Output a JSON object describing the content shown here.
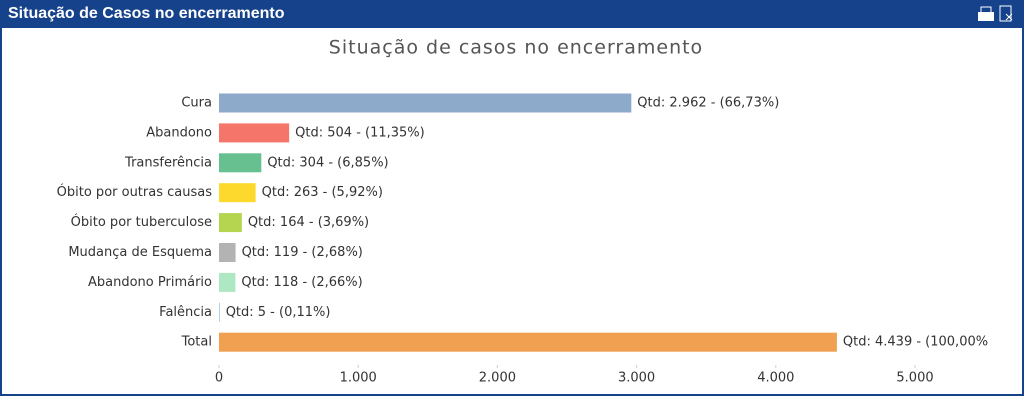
{
  "panel_title": "Situação de Casos no encerramento",
  "chart_data": {
    "type": "barh",
    "title": "Situação de casos no encerramento",
    "categories": [
      "Cura",
      "Abandono",
      "Transferência",
      "Óbito por outras causas",
      "Óbito por tuberculose",
      "Mudança de Esquema",
      "Abandono Primário",
      "Falência",
      "Total"
    ],
    "values": [
      2962,
      504,
      304,
      263,
      164,
      119,
      118,
      5,
      4439
    ],
    "value_labels": [
      "Qtd: 2.962 - (66,73%)",
      "Qtd: 504 - (11,35%)",
      "Qtd: 304 - (6,85%)",
      "Qtd: 263 - (5,92%)",
      "Qtd: 164 - (3,69%)",
      "Qtd: 119 - (2,68%)",
      "Qtd: 118 - (2,66%)",
      "Qtd: 5 - (0,11%)",
      "Qtd: 4.439 - (100,00%"
    ],
    "colors": [
      "#8eaacb",
      "#f5756a",
      "#66c08f",
      "#fcd92c",
      "#b5d44f",
      "#b3b3b3",
      "#aee8c3",
      "#a9d3f0",
      "#f0a050"
    ],
    "xlim": [
      0,
      5000
    ],
    "xticks": [
      0,
      {
        "value": 1000,
        "label": "1.000"
      },
      {
        "value": 2000,
        "label": "2.000"
      },
      {
        "value": 3000,
        "label": "3.000"
      },
      {
        "value": 4000,
        "label": "4.000"
      },
      {
        "value": 5000,
        "label": "5.000"
      }
    ],
    "grid": false
  }
}
